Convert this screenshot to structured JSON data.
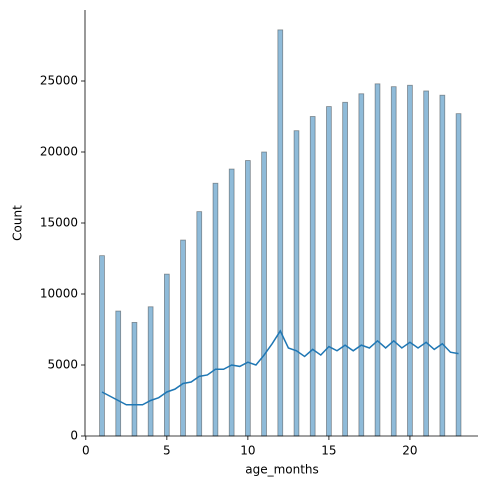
{
  "chart_data": {
    "type": "histogram",
    "xlabel": "age_months",
    "ylabel": "Count",
    "bins": [
      0.85,
      1.15,
      1.85,
      2.15,
      2.85,
      3.15,
      3.85,
      4.15,
      4.85,
      5.15,
      5.85,
      6.15,
      6.85,
      7.15,
      7.85,
      8.15,
      8.85,
      9.15,
      9.85,
      10.15,
      10.85,
      11.15,
      11.85,
      12.15,
      12.85,
      13.15,
      13.85,
      14.15,
      14.85,
      15.15,
      15.85,
      16.15,
      16.85,
      17.15,
      17.85,
      18.15,
      18.85,
      19.15,
      19.85,
      20.15,
      20.85,
      21.15,
      21.85,
      22.15,
      22.85,
      23.15
    ],
    "values": [
      12700,
      0,
      8800,
      0,
      8000,
      0,
      9100,
      0,
      11400,
      0,
      13800,
      0,
      15800,
      0,
      17800,
      0,
      18800,
      0,
      19400,
      0,
      20000,
      0,
      28600,
      0,
      21500,
      0,
      22500,
      0,
      23200,
      0,
      23500,
      0,
      24100,
      0,
      24800,
      0,
      24600,
      0,
      24700,
      0,
      24300,
      0,
      24000,
      0,
      22700
    ],
    "color": "#1f77b4",
    "kde": {
      "x": [
        1,
        1.5,
        2,
        2.5,
        3,
        3.5,
        4,
        4.5,
        5,
        5.5,
        6,
        6.5,
        7,
        7.5,
        8,
        8.5,
        9,
        9.5,
        10,
        10.5,
        11,
        11.5,
        12,
        12.5,
        13,
        13.5,
        14,
        14.5,
        15,
        15.5,
        16,
        16.5,
        17,
        17.5,
        18,
        18.5,
        19,
        19.5,
        20,
        20.5,
        21,
        21.5,
        22,
        22.5,
        23
      ],
      "values": [
        3100,
        2800,
        2500,
        2200,
        2200,
        2200,
        2500,
        2700,
        3100,
        3300,
        3700,
        3800,
        4200,
        4300,
        4700,
        4700,
        5000,
        4900,
        5200,
        5000,
        5700,
        6500,
        7400,
        6200,
        6000,
        5600,
        6100,
        5700,
        6300,
        6000,
        6400,
        6000,
        6400,
        6200,
        6700,
        6200,
        6700,
        6200,
        6600,
        6200,
        6600,
        6100,
        6500,
        5900,
        5800
      ]
    },
    "xlim": [
      -0.05,
      24.2
    ],
    "ylim": [
      0,
      30000
    ],
    "xticks": [
      0,
      5,
      10,
      15,
      20
    ],
    "yticks": [
      0,
      5000,
      10000,
      15000,
      20000,
      25000
    ]
  }
}
